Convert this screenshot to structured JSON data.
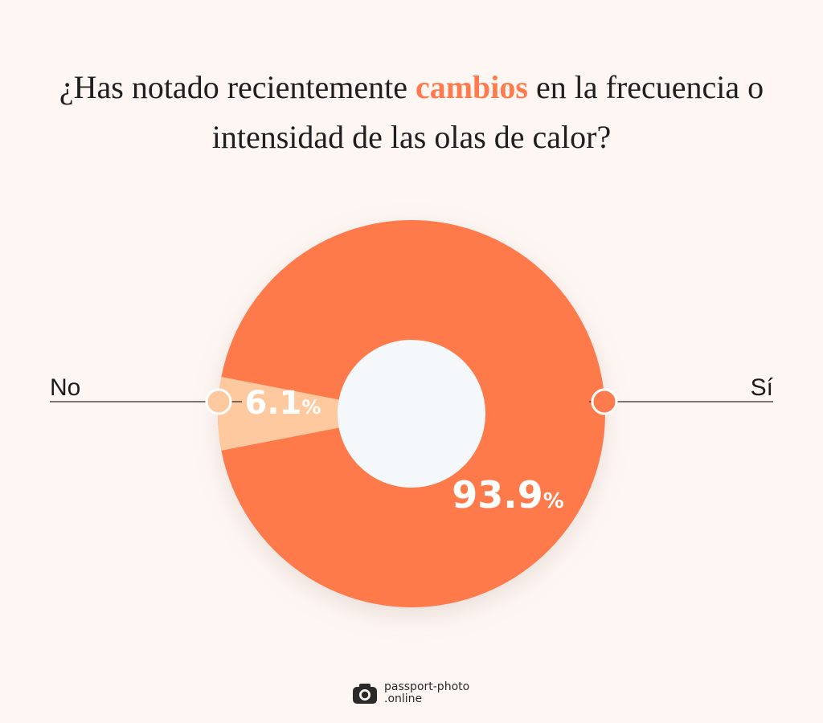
{
  "title": {
    "before": "¿Has notado recientemente ",
    "highlight": "cambios",
    "after": " en la frecuencia o intensidad de las olas de calor?"
  },
  "colors": {
    "si": "#ff7a4c",
    "no": "#ffc99f",
    "center": "#f5f8fb",
    "highlight": "#ff7a4c"
  },
  "chart_data": {
    "type": "pie",
    "style": "donut",
    "slices": [
      {
        "label": "No",
        "value": 6.1,
        "display": "6.1",
        "unit": "%"
      },
      {
        "label": "Sí",
        "value": 93.9,
        "display": "93.9",
        "unit": "%"
      }
    ]
  },
  "brand": {
    "line1": "passport-photo",
    "line2": ".online",
    "icon": "camera-icon"
  }
}
